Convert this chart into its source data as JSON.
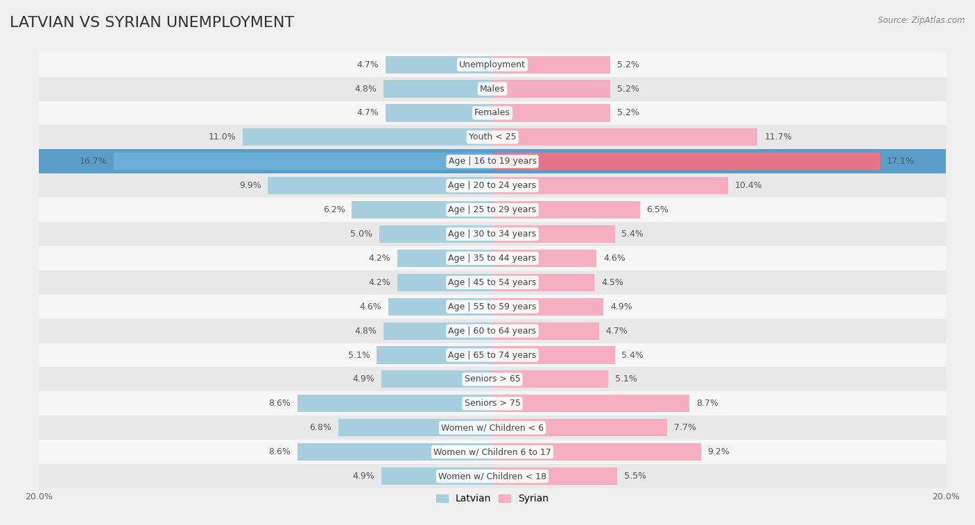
{
  "title": "LATVIAN VS SYRIAN UNEMPLOYMENT",
  "source": "Source: ZipAtlas.com",
  "categories": [
    "Unemployment",
    "Males",
    "Females",
    "Youth < 25",
    "Age | 16 to 19 years",
    "Age | 20 to 24 years",
    "Age | 25 to 29 years",
    "Age | 30 to 34 years",
    "Age | 35 to 44 years",
    "Age | 45 to 54 years",
    "Age | 55 to 59 years",
    "Age | 60 to 64 years",
    "Age | 65 to 74 years",
    "Seniors > 65",
    "Seniors > 75",
    "Women w/ Children < 6",
    "Women w/ Children 6 to 17",
    "Women w/ Children < 18"
  ],
  "latvian": [
    4.7,
    4.8,
    4.7,
    11.0,
    16.7,
    9.9,
    6.2,
    5.0,
    4.2,
    4.2,
    4.6,
    4.8,
    5.1,
    4.9,
    8.6,
    6.8,
    8.6,
    4.9
  ],
  "syrian": [
    5.2,
    5.2,
    5.2,
    11.7,
    17.1,
    10.4,
    6.5,
    5.4,
    4.6,
    4.5,
    4.9,
    4.7,
    5.4,
    5.1,
    8.7,
    7.7,
    9.2,
    5.5
  ],
  "latvian_color": "#a8cfe0",
  "syrian_color": "#f5afc0",
  "highlight_latvian_color": "#6bafd6",
  "highlight_syrian_color": "#e8748a",
  "background_color": "#f0f0f0",
  "row_color_light": "#f7f7f7",
  "row_color_dark": "#e8e8e8",
  "max_value": 20.0,
  "bar_height": 0.72,
  "title_fontsize": 16,
  "label_fontsize": 9,
  "value_fontsize": 9,
  "legend_fontsize": 10,
  "highlight_indices": [
    4
  ]
}
